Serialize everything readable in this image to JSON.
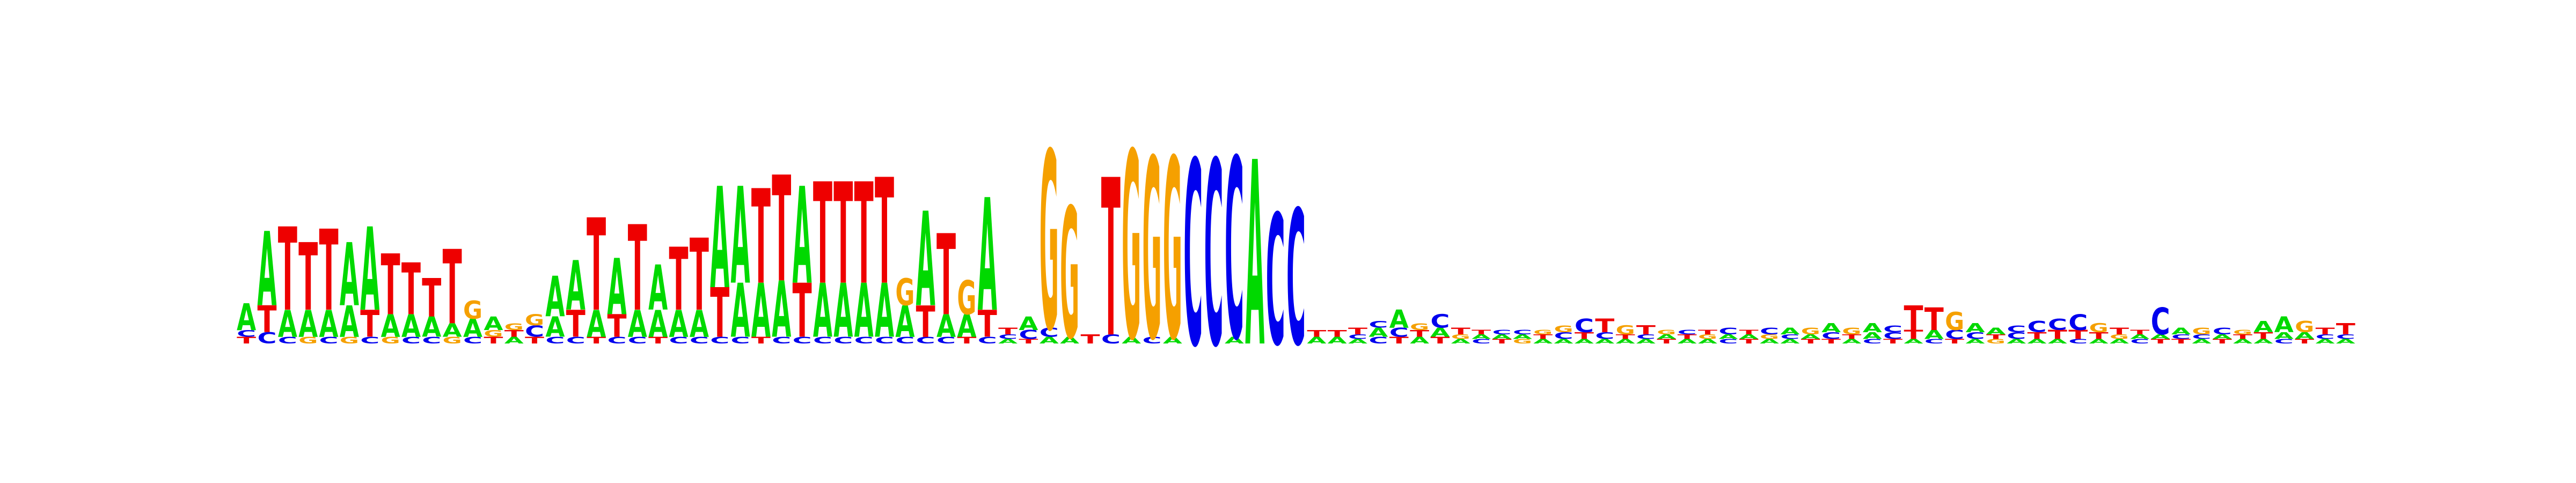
{
  "logo": {
    "type": "sequence-logo",
    "colors": {
      "A": "#00d900",
      "C": "#0000ee",
      "G": "#f5a000",
      "T": "#ee0000"
    },
    "columns": [
      [
        [
          "T",
          0.03
        ],
        [
          "C",
          0.03
        ],
        [
          "A",
          0.12
        ]
      ],
      [
        [
          "C",
          0.05
        ],
        [
          "T",
          0.12
        ],
        [
          "A",
          0.33
        ]
      ],
      [
        [
          "C",
          0.03
        ],
        [
          "A",
          0.12
        ],
        [
          "T",
          0.37
        ]
      ],
      [
        [
          "G",
          0.03
        ],
        [
          "A",
          0.12
        ],
        [
          "T",
          0.3
        ]
      ],
      [
        [
          "C",
          0.03
        ],
        [
          "A",
          0.12
        ],
        [
          "T",
          0.36
        ]
      ],
      [
        [
          "G",
          0.03
        ],
        [
          "A",
          0.14
        ],
        [
          "A",
          0.28
        ]
      ],
      [
        [
          "C",
          0.03
        ],
        [
          "T",
          0.12
        ],
        [
          "A",
          0.37
        ]
      ],
      [
        [
          "G",
          0.03
        ],
        [
          "A",
          0.1
        ],
        [
          "T",
          0.27
        ]
      ],
      [
        [
          "C",
          0.03
        ],
        [
          "A",
          0.1
        ],
        [
          "T",
          0.23
        ]
      ],
      [
        [
          "C",
          0.03
        ],
        [
          "A",
          0.09
        ],
        [
          "T",
          0.17
        ]
      ],
      [
        [
          "G",
          0.03
        ],
        [
          "A",
          0.06
        ],
        [
          "T",
          0.33
        ]
      ],
      [
        [
          "C",
          0.03
        ],
        [
          "A",
          0.08
        ],
        [
          "G",
          0.08
        ]
      ],
      [
        [
          "T",
          0.03
        ],
        [
          "G",
          0.03
        ],
        [
          "A",
          0.06
        ]
      ],
      [
        [
          "A",
          0.03
        ],
        [
          "T",
          0.03
        ],
        [
          "G",
          0.03
        ]
      ],
      [
        [
          "T",
          0.03
        ],
        [
          "C",
          0.05
        ],
        [
          "G",
          0.05
        ]
      ],
      [
        [
          "C",
          0.03
        ],
        [
          "A",
          0.09
        ],
        [
          "A",
          0.18
        ]
      ],
      [
        [
          "C",
          0.03
        ],
        [
          "T",
          0.12
        ],
        [
          "A",
          0.22
        ]
      ],
      [
        [
          "T",
          0.03
        ],
        [
          "A",
          0.12
        ],
        [
          "T",
          0.41
        ]
      ],
      [
        [
          "C",
          0.03
        ],
        [
          "T",
          0.1
        ],
        [
          "A",
          0.25
        ]
      ],
      [
        [
          "C",
          0.03
        ],
        [
          "A",
          0.12
        ],
        [
          "T",
          0.38
        ]
      ],
      [
        [
          "T",
          0.03
        ],
        [
          "A",
          0.12
        ],
        [
          "A",
          0.2
        ]
      ],
      [
        [
          "C",
          0.03
        ],
        [
          "A",
          0.12
        ],
        [
          "T",
          0.28
        ]
      ],
      [
        [
          "C",
          0.03
        ],
        [
          "A",
          0.12
        ],
        [
          "T",
          0.32
        ]
      ],
      [
        [
          "C",
          0.03
        ],
        [
          "T",
          0.22
        ],
        [
          "A",
          0.45
        ]
      ],
      [
        [
          "C",
          0.03
        ],
        [
          "A",
          0.24
        ],
        [
          "A",
          0.43
        ]
      ],
      [
        [
          "T",
          0.03
        ],
        [
          "A",
          0.24
        ],
        [
          "T",
          0.42
        ]
      ],
      [
        [
          "C",
          0.03
        ],
        [
          "A",
          0.25
        ],
        [
          "T",
          0.47
        ]
      ],
      [
        [
          "C",
          0.03
        ],
        [
          "T",
          0.24
        ],
        [
          "A",
          0.43
        ]
      ],
      [
        [
          "C",
          0.03
        ],
        [
          "A",
          0.24
        ],
        [
          "T",
          0.45
        ]
      ],
      [
        [
          "C",
          0.03
        ],
        [
          "A",
          0.24
        ],
        [
          "T",
          0.45
        ]
      ],
      [
        [
          "C",
          0.03
        ],
        [
          "A",
          0.24
        ],
        [
          "T",
          0.45
        ]
      ],
      [
        [
          "C",
          0.03
        ],
        [
          "A",
          0.24
        ],
        [
          "T",
          0.47
        ]
      ],
      [
        [
          "C",
          0.03
        ],
        [
          "A",
          0.14
        ],
        [
          "G",
          0.12
        ]
      ],
      [
        [
          "C",
          0.03
        ],
        [
          "T",
          0.14
        ],
        [
          "A",
          0.42
        ]
      ],
      [
        [
          "C",
          0.03
        ],
        [
          "A",
          0.1
        ],
        [
          "T",
          0.36
        ]
      ],
      [
        [
          "T",
          0.03
        ],
        [
          "A",
          0.1
        ],
        [
          "G",
          0.15
        ]
      ],
      [
        [
          "C",
          0.03
        ],
        [
          "T",
          0.12
        ],
        [
          "A",
          0.5
        ]
      ],
      [
        [
          "A",
          0.02
        ],
        [
          "C",
          0.02
        ],
        [
          "T",
          0.03
        ]
      ],
      [
        [
          "T",
          0.02
        ],
        [
          "C",
          0.04
        ],
        [
          "A",
          0.06
        ]
      ],
      [
        [
          "A",
          0.03
        ],
        [
          "C",
          0.04
        ],
        [
          "G",
          0.79
        ]
      ],
      [
        [
          "A",
          0.03
        ],
        [
          "G",
          0.58
        ]
      ],
      [
        [
          "T",
          0.04
        ]
      ],
      [
        [
          "C",
          0.04
        ],
        [
          "T",
          0.7
        ]
      ],
      [
        [
          "A",
          0.03
        ],
        [
          "G",
          0.83
        ]
      ],
      [
        [
          "C",
          0.03
        ],
        [
          "G",
          0.8
        ]
      ],
      [
        [
          "A",
          0.03
        ],
        [
          "G",
          0.8
        ]
      ],
      [
        [
          "C",
          0.82
        ]
      ],
      [
        [
          "C",
          0.82
        ]
      ],
      [
        [
          "A",
          0.03
        ],
        [
          "C",
          0.8
        ]
      ],
      [
        [
          "A",
          0.82
        ]
      ],
      [
        [
          "C",
          0.58
        ]
      ],
      [
        [
          "C",
          0.6
        ]
      ],
      [
        [
          "A",
          0.03
        ],
        [
          "T",
          0.03
        ]
      ],
      [
        [
          "A",
          0.03
        ],
        [
          "T",
          0.03
        ]
      ],
      [
        [
          "A",
          0.02
        ],
        [
          "C",
          0.02
        ],
        [
          "T",
          0.03
        ]
      ],
      [
        [
          "C",
          0.03
        ],
        [
          "A",
          0.04
        ],
        [
          "C",
          0.03
        ]
      ],
      [
        [
          "T",
          0.03
        ],
        [
          "C",
          0.04
        ],
        [
          "A",
          0.08
        ]
      ],
      [
        [
          "A",
          0.03
        ],
        [
          "T",
          0.03
        ],
        [
          "G",
          0.03
        ]
      ],
      [
        [
          "T",
          0.03
        ],
        [
          "A",
          0.04
        ],
        [
          "C",
          0.06
        ]
      ],
      [
        [
          "A",
          0.02
        ],
        [
          "G",
          0.02
        ],
        [
          "T",
          0.03
        ]
      ],
      [
        [
          "C",
          0.02
        ],
        [
          "A",
          0.02
        ],
        [
          "T",
          0.02
        ]
      ],
      [
        [
          "T",
          0.02
        ],
        [
          "A",
          0.02
        ],
        [
          "C",
          0.02
        ]
      ],
      [
        [
          "G",
          0.02
        ],
        [
          "A",
          0.02
        ],
        [
          "C",
          0.02
        ]
      ],
      [
        [
          "A",
          0.02
        ],
        [
          "T",
          0.02
        ],
        [
          "G",
          0.02
        ]
      ],
      [
        [
          "A",
          0.02
        ],
        [
          "C",
          0.03
        ],
        [
          "G",
          0.03
        ]
      ],
      [
        [
          "A",
          0.02
        ],
        [
          "T",
          0.03
        ],
        [
          "C",
          0.06
        ]
      ],
      [
        [
          "A",
          0.02
        ],
        [
          "C",
          0.03
        ],
        [
          "T",
          0.06
        ]
      ],
      [
        [
          "A",
          0.02
        ],
        [
          "T",
          0.02
        ],
        [
          "G",
          0.04
        ]
      ],
      [
        [
          "A",
          0.02
        ],
        [
          "C",
          0.02
        ],
        [
          "T",
          0.04
        ]
      ],
      [
        [
          "T",
          0.02
        ],
        [
          "A",
          0.02
        ],
        [
          "G",
          0.02
        ]
      ],
      [
        [
          "A",
          0.02
        ],
        [
          "T",
          0.02
        ],
        [
          "C",
          0.02
        ]
      ],
      [
        [
          "A",
          0.02
        ],
        [
          "G",
          0.02
        ],
        [
          "T",
          0.02
        ]
      ],
      [
        [
          "C",
          0.02
        ],
        [
          "A",
          0.02
        ],
        [
          "C",
          0.03
        ]
      ],
      [
        [
          "T",
          0.02
        ],
        [
          "A",
          0.02
        ],
        [
          "T",
          0.02
        ]
      ],
      [
        [
          "A",
          0.02
        ],
        [
          "G",
          0.02
        ],
        [
          "C",
          0.03
        ]
      ],
      [
        [
          "A",
          0.02
        ],
        [
          "C",
          0.02
        ],
        [
          "A",
          0.03
        ]
      ],
      [
        [
          "T",
          0.02
        ],
        [
          "A",
          0.02
        ],
        [
          "G",
          0.03
        ]
      ],
      [
        [
          "T",
          0.02
        ],
        [
          "C",
          0.03
        ],
        [
          "A",
          0.04
        ]
      ],
      [
        [
          "A",
          0.02
        ],
        [
          "T",
          0.02
        ],
        [
          "G",
          0.03
        ]
      ],
      [
        [
          "C",
          0.02
        ],
        [
          "A",
          0.03
        ],
        [
          "A",
          0.04
        ]
      ],
      [
        [
          "T",
          0.02
        ],
        [
          "C",
          0.03
        ],
        [
          "C",
          0.03
        ]
      ],
      [
        [
          "A",
          0.02
        ],
        [
          "T",
          0.04
        ],
        [
          "T",
          0.11
        ]
      ],
      [
        [
          "C",
          0.02
        ],
        [
          "A",
          0.04
        ],
        [
          "T",
          0.1
        ]
      ],
      [
        [
          "T",
          0.02
        ],
        [
          "C",
          0.04
        ],
        [
          "G",
          0.08
        ]
      ],
      [
        [
          "A",
          0.02
        ],
        [
          "C",
          0.03
        ],
        [
          "A",
          0.04
        ]
      ],
      [
        [
          "G",
          0.02
        ],
        [
          "T",
          0.02
        ],
        [
          "A",
          0.03
        ]
      ],
      [
        [
          "A",
          0.02
        ],
        [
          "C",
          0.03
        ],
        [
          "C",
          0.03
        ]
      ],
      [
        [
          "A",
          0.02
        ],
        [
          "T",
          0.03
        ],
        [
          "C",
          0.05
        ]
      ],
      [
        [
          "A",
          0.02
        ],
        [
          "T",
          0.04
        ],
        [
          "C",
          0.05
        ]
      ],
      [
        [
          "C",
          0.02
        ],
        [
          "T",
          0.04
        ],
        [
          "C",
          0.07
        ]
      ],
      [
        [
          "A",
          0.02
        ],
        [
          "T",
          0.03
        ],
        [
          "G",
          0.04
        ]
      ],
      [
        [
          "A",
          0.02
        ],
        [
          "G",
          0.02
        ],
        [
          "T",
          0.03
        ]
      ],
      [
        [
          "C",
          0.02
        ],
        [
          "A",
          0.02
        ],
        [
          "T",
          0.02
        ]
      ],
      [
        [
          "T",
          0.02
        ],
        [
          "A",
          0.02
        ],
        [
          "C",
          0.12
        ]
      ],
      [
        [
          "T",
          0.02
        ],
        [
          "C",
          0.02
        ],
        [
          "A",
          0.03
        ]
      ],
      [
        [
          "A",
          0.02
        ],
        [
          "C",
          0.02
        ],
        [
          "G",
          0.03
        ]
      ],
      [
        [
          "T",
          0.02
        ],
        [
          "A",
          0.02
        ],
        [
          "C",
          0.03
        ]
      ],
      [
        [
          "A",
          0.02
        ],
        [
          "T",
          0.02
        ],
        [
          "G",
          0.02
        ]
      ],
      [
        [
          "A",
          0.02
        ],
        [
          "T",
          0.03
        ],
        [
          "A",
          0.05
        ]
      ],
      [
        [
          "C",
          0.02
        ],
        [
          "A",
          0.03
        ],
        [
          "A",
          0.07
        ]
      ],
      [
        [
          "T",
          0.02
        ],
        [
          "A",
          0.03
        ],
        [
          "G",
          0.05
        ]
      ],
      [
        [
          "A",
          0.02
        ],
        [
          "C",
          0.02
        ],
        [
          "T",
          0.03
        ]
      ],
      [
        [
          "A",
          0.02
        ],
        [
          "C",
          0.02
        ],
        [
          "T",
          0.05
        ]
      ]
    ]
  }
}
